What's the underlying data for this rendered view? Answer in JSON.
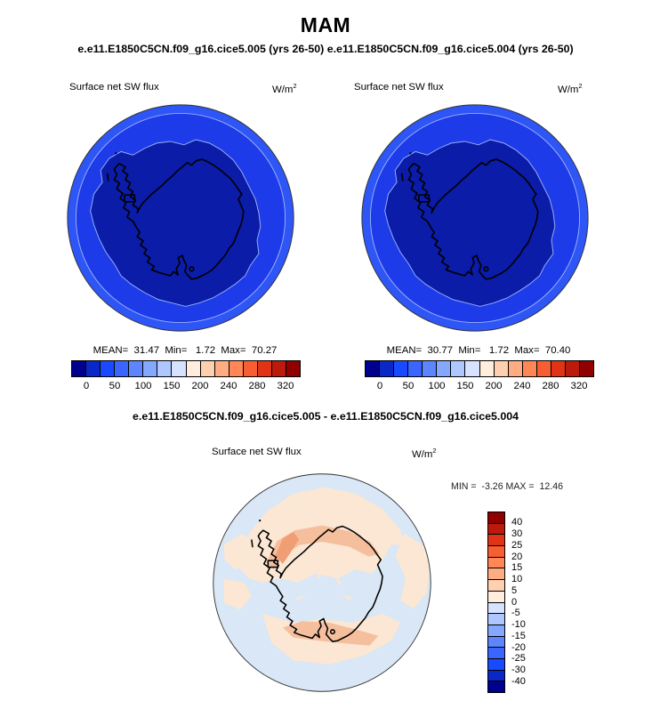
{
  "header": {
    "title": "MAM",
    "subtitle": "e.e11.E1850C5CN.f09_g16.cice5.005 (yrs 26-50) e.e11.E1850C5CN.f09_g16.cice5.004 (yrs 26-50)"
  },
  "panel_a": {
    "field_label": "Surface net SW flux",
    "units_base": "W/m",
    "units_sup": "2",
    "stats_line": "MEAN=  31.47  Min=   1.72  Max=  70.27",
    "ticks": [
      "0",
      "50",
      "100",
      "150",
      "200",
      "240",
      "280",
      "320"
    ]
  },
  "panel_b": {
    "field_label": "Surface net SW flux",
    "units_base": "W/m",
    "units_sup": "2",
    "stats_line": "MEAN=  30.77  Min=   1.72  Max=  70.40",
    "ticks": [
      "0",
      "50",
      "100",
      "150",
      "200",
      "240",
      "280",
      "320"
    ]
  },
  "panel_diff": {
    "title": "e.e11.E1850C5CN.f09_g16.cice5.005 - e.e11.E1850C5CN.f09_g16.cice5.004",
    "field_label": "Surface net SW flux",
    "units_base": "W/m",
    "units_sup": "2",
    "minmax_line": "MIN =  -3.26 MAX =  12.46",
    "cb_labels": [
      "40",
      "30",
      "25",
      "20",
      "15",
      "10",
      "5",
      "0",
      "-5",
      "-10",
      "-15",
      "-20",
      "-25",
      "-30",
      "-40"
    ]
  },
  "colors": {
    "palette_16": [
      "#00008f",
      "#0a28c8",
      "#1a4aff",
      "#3a66ff",
      "#5c85ff",
      "#85a8ff",
      "#aec8ff",
      "#d6e2ff",
      "#ffeedd",
      "#ffd0b0",
      "#ffac82",
      "#ff8657",
      "#f75f33",
      "#e13417",
      "#bc1a0b",
      "#900000"
    ],
    "map_navy": "#0a1ca8",
    "map_mid": "#1d3be8",
    "map_rim": "#2e55f5",
    "map_contour": "#9ab0f7",
    "diff_base": "#d9e7f6",
    "diff_cream": "#fbe7d3",
    "diff_peach": "#f5bf9e",
    "diff_deep": "#f09f74",
    "ink": "#000000"
  },
  "chart_data": [
    {
      "type": "heatmap",
      "subtype": "south-polar-stereographic-contour-map",
      "season": "MAM",
      "run": "e.e11.E1850C5CN.f09_g16.cice5.005 (yrs 26-50)",
      "title": "Surface net SW flux",
      "units": "W/m^2",
      "stats": {
        "mean": 31.47,
        "min": 1.72,
        "max": 70.27
      },
      "contour_levels": [
        0,
        25,
        50,
        75,
        100,
        125,
        150,
        175,
        200,
        220,
        240,
        260,
        280,
        300,
        320
      ],
      "labeled_ticks": [
        0,
        50,
        100,
        150,
        200,
        240,
        280,
        320
      ],
      "legend_position": "below",
      "map_regions": {
        "inner_0_25": "continent and inner pack ice (dark navy)",
        "annulus_25_50": "surrounding ocean (blue)",
        "outer_50_75": "outer rim of domain (bright blue)"
      }
    },
    {
      "type": "heatmap",
      "subtype": "south-polar-stereographic-contour-map",
      "season": "MAM",
      "run": "e.e11.E1850C5CN.f09_g16.cice5.004 (yrs 26-50)",
      "title": "Surface net SW flux",
      "units": "W/m^2",
      "stats": {
        "mean": 30.77,
        "min": 1.72,
        "max": 70.4
      },
      "contour_levels": [
        0,
        25,
        50,
        75,
        100,
        125,
        150,
        175,
        200,
        220,
        240,
        260,
        280,
        300,
        320
      ],
      "labeled_ticks": [
        0,
        50,
        100,
        150,
        200,
        240,
        280,
        320
      ],
      "legend_position": "below",
      "map_regions": {
        "inner_0_25": "continent and inner pack ice (dark navy)",
        "annulus_25_50": "surrounding ocean (blue)",
        "outer_50_75": "outer rim of domain (bright blue)"
      }
    },
    {
      "type": "heatmap",
      "subtype": "south-polar-stereographic-contour-map",
      "title": "e.e11.E1850C5CN.f09_g16.cice5.005 - e.e11.E1850C5CN.f09_g16.cice5.004",
      "field": "Surface net SW flux",
      "units": "W/m^2",
      "stats": {
        "min": -3.26,
        "max": 12.46
      },
      "contour_levels": [
        -40,
        -30,
        -25,
        -20,
        -15,
        -10,
        -5,
        0,
        5,
        10,
        15,
        20,
        25,
        30,
        40
      ],
      "legend_position": "right",
      "map_regions": {
        "neg_5_0": "pale blue background over continent interior and scattered ocean",
        "pos_0_5": "cream patches over much of the ocean ring",
        "pos_5_10": "peach arcs north of the peninsula and along the bottom coast",
        "pos_10_15": "small deeper-orange streak northwest of the peninsula"
      }
    }
  ]
}
